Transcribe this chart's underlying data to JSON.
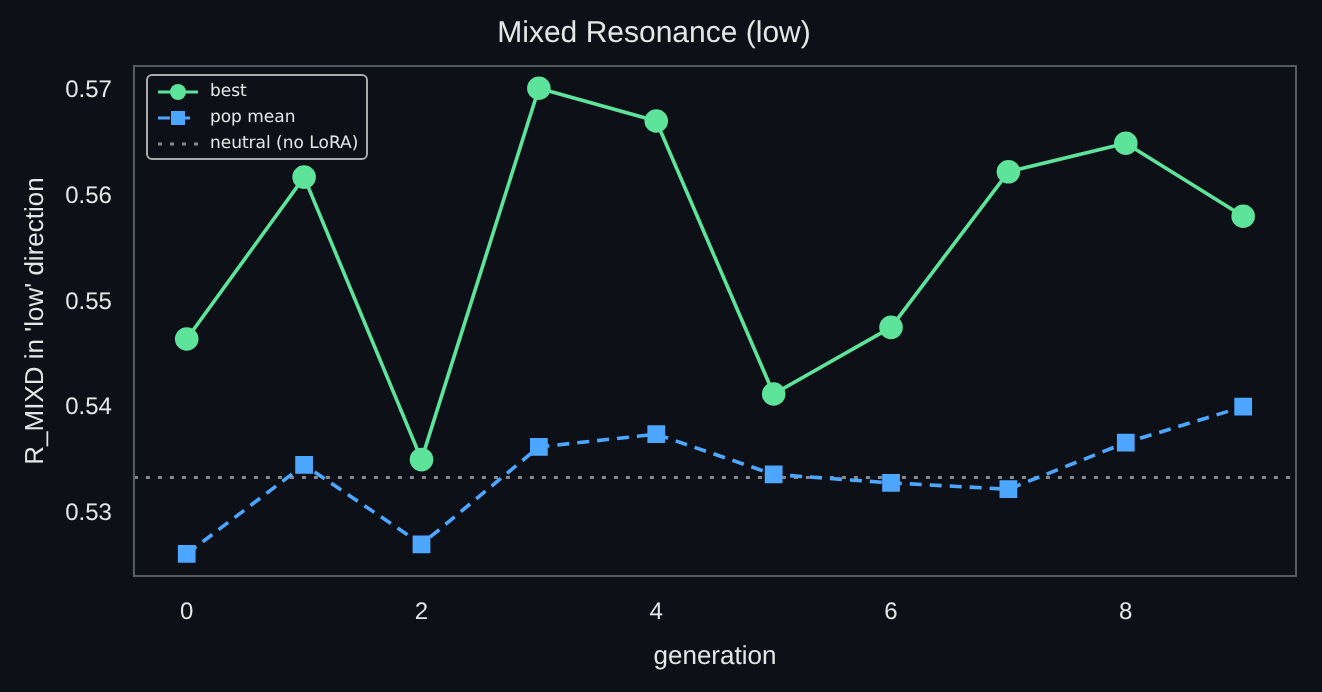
{
  "chart_data": {
    "type": "line",
    "title": "Mixed Resonance (low)",
    "xlabel": "generation",
    "ylabel": "R_MIXD in 'low' direction",
    "x": [
      0,
      1,
      2,
      3,
      4,
      5,
      6,
      7,
      8,
      9
    ],
    "series": [
      {
        "name": "best",
        "color": "#5ee39a",
        "marker": "circle",
        "line_style": "solid",
        "values": [
          0.5465,
          0.5618,
          0.5351,
          0.5702,
          0.5671,
          0.5413,
          0.5476,
          0.5623,
          0.565,
          0.5581
        ]
      },
      {
        "name": "pop mean",
        "color": "#4da6ff",
        "marker": "square",
        "line_style": "dashed",
        "values": [
          0.5262,
          0.5346,
          0.5271,
          0.5363,
          0.5375,
          0.5337,
          0.5329,
          0.5323,
          0.5367,
          0.5401
        ]
      }
    ],
    "ref_lines": [
      {
        "axis": "y",
        "value": 0.5334,
        "label": "neutral (no LoRA)",
        "color": "#888888",
        "line_style": "dotted"
      }
    ],
    "xlim": [
      -0.45,
      9.45
    ],
    "xticks": [
      0,
      2,
      4,
      6,
      8
    ],
    "ylim": [
      0.5241,
      0.5723
    ],
    "yticks": [
      0.53,
      0.54,
      0.55,
      0.56,
      0.57
    ],
    "grid": false,
    "legend": "top left"
  }
}
